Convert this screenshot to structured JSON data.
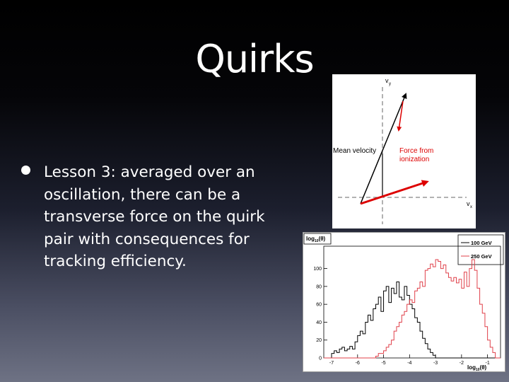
{
  "slide": {
    "title": "Quirks",
    "bullet_lines": [
      "Lesson 3: averaged over an",
      "oscillation, there can be a",
      "transverse force on the quirk",
      "pair with consequences for",
      "tracking efficiency."
    ]
  },
  "vector_diagram": {
    "vy_label": "v",
    "vy_sub": "y",
    "vx_label": "v",
    "vx_sub": "x",
    "mean_velocity_label": "Mean velocity",
    "force_label_line1": "Force from",
    "force_label_line2": "ionization",
    "colors": {
      "force": "#dd0000",
      "velocity": "#000000"
    }
  },
  "chart_data": {
    "type": "histogram",
    "ylabel_prefix": "log",
    "ylabel_sub": "10",
    "ylabel_suffix": "(θ)",
    "xlabel_prefix": "log",
    "xlabel_sub": "10",
    "xlabel_suffix": "(θ)",
    "xlim": [
      -7.3,
      -0.5
    ],
    "ylim": [
      0,
      125
    ],
    "x_ticks": [
      -7,
      -6,
      -5,
      -4,
      -3,
      -2,
      -1
    ],
    "y_ticks": [
      0,
      20,
      40,
      60,
      80,
      100
    ],
    "bin_edges_start": -7.3,
    "bin_width": 0.1,
    "series": [
      {
        "name": "100 GeV",
        "color": "#000000",
        "values": [
          0,
          0,
          0,
          5,
          8,
          6,
          10,
          12,
          8,
          10,
          13,
          10,
          18,
          25,
          30,
          27,
          40,
          48,
          42,
          55,
          60,
          68,
          52,
          75,
          80,
          62,
          78,
          72,
          85,
          68,
          65,
          80,
          70,
          60,
          55,
          45,
          40,
          30,
          22,
          16,
          10,
          6,
          3,
          0,
          0,
          0,
          0,
          0,
          0,
          0,
          0,
          0,
          0,
          0,
          0,
          0,
          0,
          0,
          0,
          0,
          0,
          0,
          0,
          0,
          0,
          0,
          0,
          0
        ]
      },
      {
        "name": "250 GeV",
        "color": "#e0404a",
        "values": [
          0,
          0,
          0,
          0,
          0,
          0,
          0,
          0,
          0,
          0,
          0,
          0,
          0,
          0,
          0,
          0,
          0,
          0,
          0,
          0,
          2,
          5,
          5,
          8,
          12,
          15,
          20,
          30,
          35,
          40,
          48,
          52,
          60,
          65,
          62,
          75,
          78,
          85,
          80,
          98,
          100,
          105,
          102,
          110,
          108,
          100,
          104,
          95,
          90,
          86,
          90,
          84,
          88,
          78,
          96,
          80,
          100,
          110,
          98,
          78,
          60,
          50,
          35,
          20,
          12,
          6,
          0,
          0
        ]
      }
    ]
  }
}
